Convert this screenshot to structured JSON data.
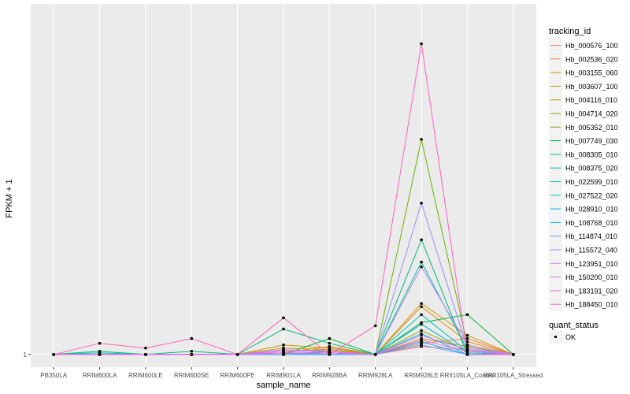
{
  "chart_data": {
    "type": "line",
    "xlabel": "sample_name",
    "ylabel": "FPKM + 1",
    "y_tick_labels": [
      "1"
    ],
    "ylim": [
      0.92,
      3.2
    ],
    "categories": [
      "PB350LA",
      "RRIM600LA",
      "RRIM600LE",
      "RRIM600SE",
      "RRIM600PE",
      "RRIM901LA",
      "RRIM928BA",
      "RRIM928LA",
      "RRIM928LE",
      "RRII105LA_Control",
      "RRII105LA_Stressed"
    ],
    "legend_title": "tracking_id",
    "series": [
      {
        "name": "Hb_000576_100",
        "color": "#F8766D",
        "values": [
          1,
          1.0,
          1,
          1.0,
          1.0,
          1.03,
          1.02,
          1.0,
          1.05,
          1.03,
          1
        ]
      },
      {
        "name": "Hb_002536_020",
        "color": "#EE8043",
        "values": [
          1,
          1.0,
          1,
          1.0,
          1.0,
          1.02,
          1.03,
          1.0,
          1.07,
          1.1,
          1
        ]
      },
      {
        "name": "Hb_003155_060",
        "color": "#E18A00",
        "values": [
          1,
          1.0,
          1,
          1.0,
          1.0,
          1.01,
          1.05,
          1.0,
          1.3,
          1.08,
          1
        ]
      },
      {
        "name": "Hb_003607_100",
        "color": "#CF9400",
        "values": [
          1,
          1.0,
          1,
          1.0,
          1.0,
          1.04,
          1.03,
          1.0,
          1.32,
          1.12,
          1
        ]
      },
      {
        "name": "Hb_004116_010",
        "color": "#B89D00",
        "values": [
          1,
          1.0,
          1,
          1.0,
          1.0,
          1.06,
          1.04,
          1.0,
          1.1,
          1.05,
          1
        ]
      },
      {
        "name": "Hb_004714_020",
        "color": "#99A600",
        "values": [
          1,
          1.0,
          1,
          1.0,
          1.0,
          1.0,
          1.01,
          1.0,
          1.15,
          1.02,
          1
        ]
      },
      {
        "name": "Hb_005352_010",
        "color": "#6DAE00",
        "values": [
          1,
          1.0,
          1,
          1.0,
          1.0,
          1.0,
          1.02,
          1.0,
          2.35,
          1.06,
          1
        ]
      },
      {
        "name": "Hb_007749_030",
        "color": "#00B438",
        "values": [
          1,
          1.0,
          1,
          1.0,
          1.0,
          1.0,
          1.1,
          1.0,
          1.2,
          1.25,
          1
        ]
      },
      {
        "name": "Hb_008305_010",
        "color": "#00B87C",
        "values": [
          1,
          1.02,
          1,
          1.02,
          1.0,
          1.16,
          1.07,
          1.0,
          1.72,
          1.0,
          1
        ]
      },
      {
        "name": "Hb_008375_020",
        "color": "#00BC9C",
        "values": [
          1,
          1.0,
          1,
          1.0,
          1.0,
          1.0,
          1.02,
          1.0,
          1.58,
          1.03,
          1
        ]
      },
      {
        "name": "Hb_022599_010",
        "color": "#00BFB8",
        "values": [
          1,
          1.01,
          1,
          1.0,
          1.0,
          1.0,
          1.01,
          1.0,
          1.25,
          1.02,
          1
        ]
      },
      {
        "name": "Hb_027522_020",
        "color": "#00BECE",
        "values": [
          1,
          1.0,
          1,
          1.0,
          1.0,
          1.0,
          1.01,
          1.0,
          1.19,
          1.01,
          1
        ]
      },
      {
        "name": "Hb_028910_010",
        "color": "#00B8E5",
        "values": [
          1,
          1.0,
          1,
          1.0,
          1.0,
          1.0,
          1.0,
          1.0,
          1.13,
          1.0,
          1
        ]
      },
      {
        "name": "Hb_108768_010",
        "color": "#00ADF9",
        "values": [
          1,
          1.0,
          1,
          1.0,
          1.0,
          1.0,
          1.0,
          1.0,
          1.08,
          1.0,
          1
        ]
      },
      {
        "name": "Hb_114874_010",
        "color": "#619CFF",
        "values": [
          1,
          1.0,
          1,
          1.0,
          1.0,
          1.01,
          1.0,
          1.0,
          1.06,
          1.0,
          1
        ]
      },
      {
        "name": "Hb_115572_040",
        "color": "#9590FF",
        "values": [
          1,
          1.0,
          1,
          1.0,
          1.0,
          1.0,
          1.01,
          1.0,
          1.95,
          1.04,
          1
        ]
      },
      {
        "name": "Hb_123951_010",
        "color": "#B983FF",
        "values": [
          1,
          1.0,
          1,
          1.0,
          1.0,
          1.03,
          1.02,
          1.0,
          1.55,
          1.06,
          1
        ]
      },
      {
        "name": "Hb_150200_010",
        "color": "#D575FE",
        "values": [
          1,
          1.0,
          1,
          1.0,
          1.0,
          1.02,
          1.02,
          1.0,
          1.12,
          1.03,
          1
        ]
      },
      {
        "name": "Hb_183191_020",
        "color": "#F365E6",
        "values": [
          1,
          1.0,
          1,
          1.0,
          1.0,
          1.01,
          1.01,
          1.0,
          1.09,
          1.02,
          1
        ]
      },
      {
        "name": "Hb_188450_010",
        "color": "#FF62BC",
        "values": [
          1,
          1.07,
          1.04,
          1.1,
          1.0,
          1.23,
          1.0,
          1.18,
          2.95,
          1.0,
          1
        ]
      }
    ],
    "point_legend_title": "quant_status",
    "point_legend_label": "OK",
    "panel_bg": "#EBEBEB",
    "grid_color": "#FFFFFF"
  }
}
